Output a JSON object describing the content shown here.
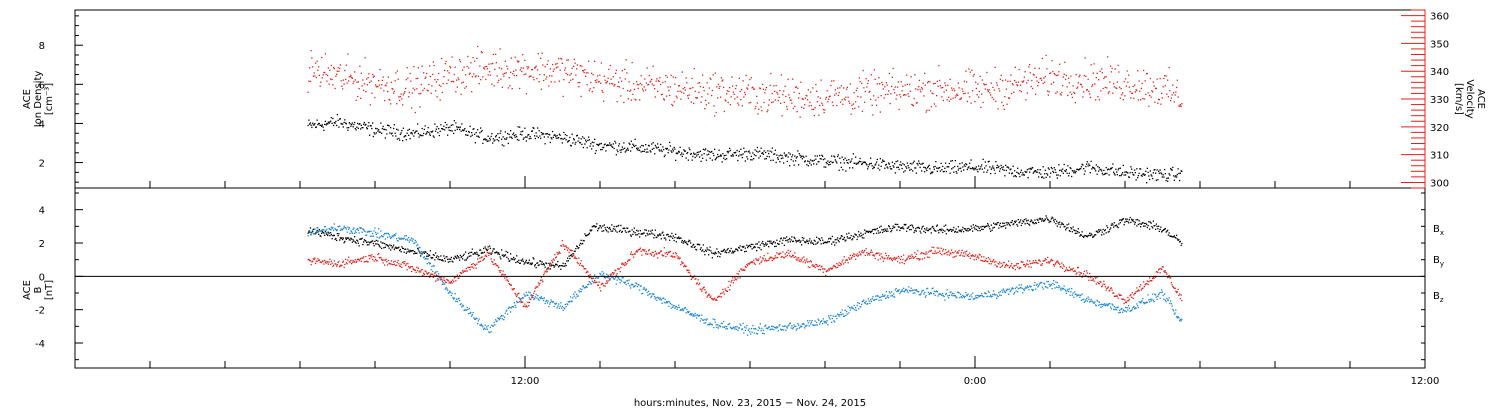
{
  "chart_data": [
    {
      "type": "scatter",
      "panel": "top",
      "ylabel_left": [
        "ACE",
        "Ion Density",
        "[cm⁻³]"
      ],
      "ylabel_right": [
        "ACE",
        "Velocity",
        "[km/s]"
      ],
      "left_axis": {
        "ylim": [
          0.7,
          9.8
        ],
        "ticks": [
          2,
          4,
          6,
          8
        ],
        "tick_labels": [
          "2",
          "4",
          "6",
          "8"
        ]
      },
      "right_axis": {
        "ylim": [
          298,
          362
        ],
        "ticks": [
          300,
          310,
          320,
          330,
          340,
          350,
          360
        ],
        "tick_labels": [
          "300",
          "310",
          "320",
          "330",
          "340",
          "350",
          "360"
        ],
        "color": "#e32119"
      },
      "x_unit": "hours since 00:00 Nov. 23, 2015",
      "series": [
        {
          "color": "#000000",
          "axis": "left",
          "anchors_x": [
            6.2,
            7.0,
            8.0,
            9.0,
            10.0,
            11.0,
            12.0,
            13.0,
            14.0,
            15.0,
            16.0,
            17.0,
            18.0,
            19.0,
            20.0,
            21.0,
            22.0,
            23.0,
            24.0,
            25.0,
            26.0,
            27.0,
            28.0,
            29.0,
            29.5
          ],
          "anchors_y": [
            3.9,
            4.1,
            3.7,
            3.5,
            3.8,
            3.3,
            3.5,
            3.3,
            2.9,
            2.8,
            2.6,
            2.4,
            2.5,
            2.3,
            2.1,
            2.0,
            1.8,
            1.7,
            1.8,
            1.6,
            1.5,
            1.8,
            1.5,
            1.4,
            1.4
          ]
        },
        {
          "color": "#e32119",
          "axis": "right",
          "anchors_x": [
            6.2,
            7.0,
            8.0,
            9.0,
            10.0,
            11.0,
            12.0,
            13.0,
            14.0,
            15.0,
            16.0,
            17.0,
            18.0,
            19.0,
            20.0,
            21.0,
            22.0,
            23.0,
            24.0,
            25.0,
            26.0,
            27.0,
            28.0,
            29.0,
            29.5
          ],
          "anchors_y": [
            341,
            338,
            336,
            334,
            339,
            341,
            341,
            340,
            337,
            335,
            334,
            333,
            332,
            331,
            331,
            332,
            333,
            334,
            333,
            335,
            338,
            337,
            336,
            334,
            330
          ]
        }
      ]
    },
    {
      "type": "scatter",
      "panel": "bottom",
      "ylabel_left": [
        "ACE",
        "B",
        "[nT]"
      ],
      "axis": {
        "ylim": [
          -5.5,
          5.3
        ],
        "ticks": [
          -4,
          -2,
          0,
          2,
          4
        ],
        "tick_labels": [
          "-4",
          "-2",
          "0",
          "2",
          "4"
        ]
      },
      "zero_line": true,
      "x_unit": "hours since 00:00 Nov. 23, 2015",
      "series": [
        {
          "name": "Bx",
          "color": "#000000",
          "anchors_x": [
            6.2,
            7.0,
            8.0,
            9.0,
            10.0,
            11.0,
            12.0,
            13.0,
            13.8,
            15.0,
            16.0,
            17.0,
            18.0,
            19.0,
            20.0,
            21.0,
            22.0,
            23.0,
            24.0,
            25.0,
            26.0,
            27.0,
            28.0,
            29.0,
            29.5
          ],
          "anchors_y": [
            2.8,
            2.4,
            2.0,
            1.5,
            1.0,
            1.6,
            0.9,
            0.6,
            3.0,
            2.7,
            2.4,
            1.4,
            1.8,
            2.2,
            2.1,
            2.6,
            3.0,
            2.8,
            2.9,
            3.2,
            3.5,
            2.4,
            3.4,
            2.9,
            2.0
          ]
        },
        {
          "name": "By",
          "color": "#1a86d6",
          "anchors_x": [
            6.2,
            7.0,
            8.0,
            9.0,
            10.0,
            11.0,
            12.0,
            13.0,
            14.0,
            15.0,
            16.0,
            17.0,
            18.0,
            19.0,
            20.0,
            21.0,
            22.0,
            23.0,
            24.0,
            25.0,
            26.0,
            27.0,
            28.0,
            29.0,
            29.5
          ],
          "anchors_y": [
            2.6,
            3.0,
            2.6,
            2.2,
            -1.0,
            -3.2,
            -1.0,
            -1.8,
            0.2,
            -0.6,
            -1.8,
            -2.8,
            -3.2,
            -3.0,
            -2.7,
            -1.6,
            -0.8,
            -1.0,
            -1.2,
            -0.8,
            -0.4,
            -1.4,
            -2.0,
            -1.0,
            -2.8
          ]
        },
        {
          "name": "Bz",
          "color": "#e32119",
          "anchors_x": [
            6.2,
            7.0,
            8.0,
            9.0,
            10.0,
            11.0,
            12.0,
            13.0,
            14.0,
            15.0,
            16.0,
            17.0,
            18.0,
            19.0,
            20.0,
            21.0,
            22.0,
            23.0,
            24.0,
            25.0,
            26.0,
            27.0,
            28.0,
            29.0,
            29.5
          ],
          "anchors_y": [
            1.0,
            0.8,
            1.2,
            0.5,
            -0.3,
            1.4,
            -1.8,
            2.0,
            -0.6,
            1.6,
            1.3,
            -1.5,
            0.9,
            1.4,
            0.4,
            1.5,
            1.0,
            1.6,
            1.2,
            0.6,
            1.0,
            0.1,
            -1.4,
            0.5,
            -1.3
          ]
        }
      ],
      "legend_placement": "right",
      "legend": [
        {
          "main": "B",
          "sub": "x",
          "color": "#000000"
        },
        {
          "main": "B",
          "sub": "y",
          "color": "#1a86d6"
        },
        {
          "main": "B",
          "sub": "z",
          "color": "#e32119"
        }
      ]
    }
  ],
  "x_axis": {
    "xlim": [
      0,
      36
    ],
    "ticks": [
      6,
      12,
      18,
      24,
      30,
      36
    ],
    "major_ticks": [
      12,
      24,
      36
    ],
    "major_tick_labels": [
      "12:00",
      "0:00",
      "12:00"
    ],
    "minor_step_hours": 2,
    "xlabel": "hours:minutes, Nov. 23, 2015 − Nov. 24, 2015"
  }
}
